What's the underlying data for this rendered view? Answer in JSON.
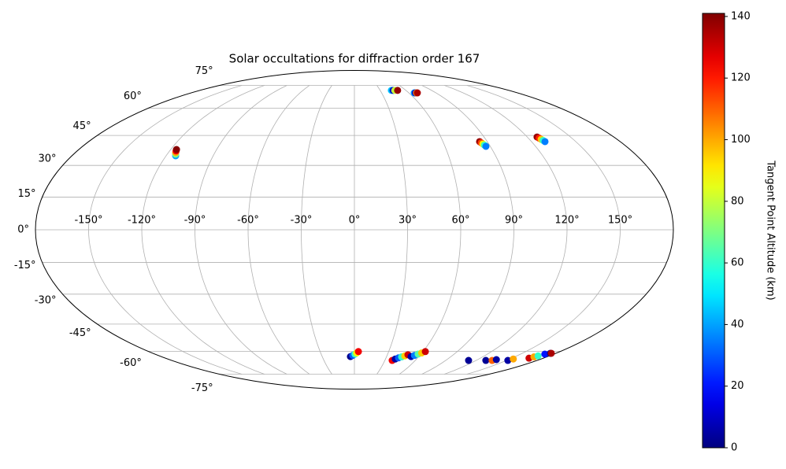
{
  "chart_data": {
    "type": "scatter",
    "projection": "mollweide",
    "title": "Solar occultations for diffraction order 167",
    "x": [
      -113.9,
      -114.6,
      -115.3,
      -115.8,
      -116.2,
      43.0,
      45.0,
      47.0,
      50.3,
      66.0,
      67.2,
      68.5,
      69.4,
      84.8,
      85.4,
      86.0,
      86.6,
      87.1,
      126.8,
      127.4,
      128.0,
      128.6,
      129.1,
      -3.7,
      -1.5,
      0.5,
      2.0,
      3.5,
      37.2,
      39.4,
      41.8,
      44.2,
      46.5,
      48.7,
      52.8,
      55.1,
      57.5,
      59.8,
      62.1,
      112.5,
      129.5,
      135.7,
      138.2,
      151.2,
      153.2,
      166.4,
      168.0,
      169.6,
      171.8,
      175.0,
      175.8
    ],
    "y": [
      34.7,
      35.5,
      36.3,
      37.1,
      37.8,
      71.4,
      71.4,
      71.4,
      71.4,
      69.7,
      69.7,
      69.7,
      69.7,
      41.8,
      41.2,
      40.6,
      40.0,
      39.4,
      44.2,
      43.6,
      43.0,
      42.4,
      41.8,
      -63.2,
      -62.5,
      -61.7,
      -61.0,
      -60.2,
      -65.6,
      -64.7,
      -64.0,
      -63.4,
      -62.8,
      -62.1,
      -63.2,
      -62.5,
      -61.7,
      -61.0,
      -60.2,
      -65.6,
      -65.6,
      -65.6,
      -65.1,
      -65.6,
      -64.7,
      -64.2,
      -63.4,
      -62.8,
      -61.7,
      -61.2,
      -61.2
    ],
    "c": [
      40,
      70,
      100,
      125,
      140,
      45,
      10,
      80,
      138,
      40,
      10,
      100,
      135,
      138,
      115,
      90,
      60,
      35,
      138,
      120,
      95,
      60,
      35,
      2,
      30,
      60,
      90,
      125,
      125,
      5,
      30,
      60,
      95,
      130,
      5,
      35,
      65,
      95,
      130,
      3,
      3,
      110,
      5,
      5,
      100,
      130,
      100,
      60,
      20,
      3,
      135
    ],
    "colormap": "jet",
    "clim": [
      0,
      141
    ],
    "xlim": [
      -180,
      180
    ],
    "ylim": [
      -90,
      90
    ],
    "xticks": [
      {
        "value": -150,
        "label": "-150°"
      },
      {
        "value": -120,
        "label": "-120°"
      },
      {
        "value": -90,
        "label": "-90°"
      },
      {
        "value": -60,
        "label": "-60°"
      },
      {
        "value": -30,
        "label": "-30°"
      },
      {
        "value": 0,
        "label": "0°"
      },
      {
        "value": 30,
        "label": "30°"
      },
      {
        "value": 60,
        "label": "60°"
      },
      {
        "value": 90,
        "label": "90°"
      },
      {
        "value": 120,
        "label": "120°"
      },
      {
        "value": 150,
        "label": "150°"
      }
    ],
    "yticks": [
      {
        "value": -75,
        "label": "-75°"
      },
      {
        "value": -60,
        "label": "-60°"
      },
      {
        "value": -45,
        "label": "-45°"
      },
      {
        "value": -30,
        "label": "-30°"
      },
      {
        "value": -15,
        "label": "-15°"
      },
      {
        "value": 0,
        "label": "0°"
      },
      {
        "value": 15,
        "label": "15°"
      },
      {
        "value": 30,
        "label": "30°"
      },
      {
        "value": 45,
        "label": "45°"
      },
      {
        "value": 60,
        "label": "60°"
      },
      {
        "value": 75,
        "label": "75°"
      }
    ],
    "grid": true,
    "colorbar": {
      "label": "Tangent Point Altitude (km)",
      "ticks": [
        0,
        20,
        40,
        60,
        80,
        100,
        120,
        140
      ]
    }
  }
}
